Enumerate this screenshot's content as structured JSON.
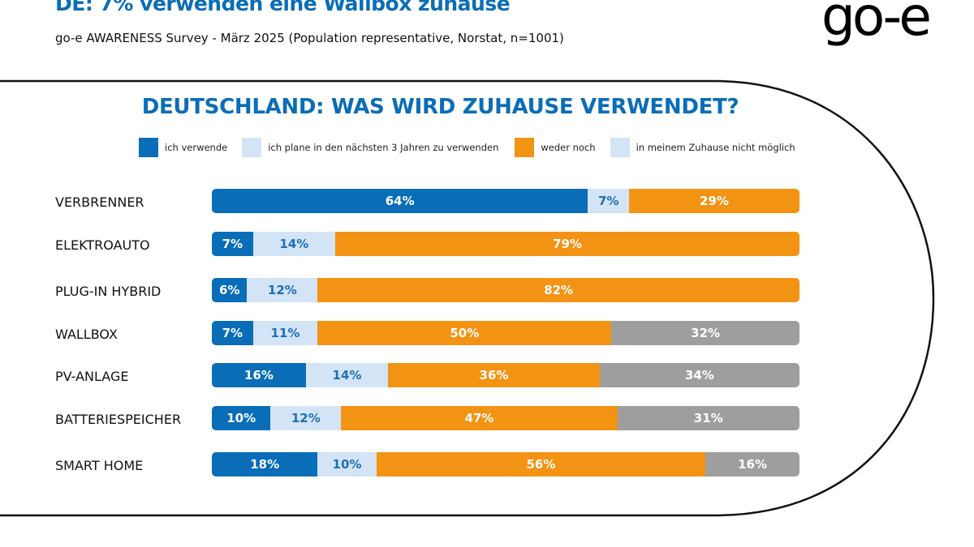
{
  "header": {
    "title": "DE: 7% verwenden eine Wallbox zuhause",
    "subtitle": "go-e AWARENESS Survey - März 2025 (Population representative, Norstat, n=1001)",
    "logo": "go-e"
  },
  "chart_data": {
    "type": "bar",
    "orientation": "horizontal",
    "stacked": true,
    "title": "DEUTSCHLAND: WAS WIRD ZUHAUSE VERWENDET?",
    "legend_placement": "top",
    "categories": [
      "VERBRENNER",
      "ELEKTROAUTO",
      "PLUG-IN HYBRID",
      "WALLBOX",
      "PV-ANLAGE",
      "BATTERIESPEICHER",
      "SMART HOME"
    ],
    "series": [
      {
        "name": "ich verwende",
        "color": "#0a6db7",
        "legend_color": "#0a6db7",
        "label_color": "#ffffff",
        "values": [
          64,
          7,
          6,
          7,
          16,
          10,
          18
        ]
      },
      {
        "name": "ich plane in den nächsten 3 Jahren zu verwenden",
        "color": "#d3e4f6",
        "legend_color": "#d3e4f6",
        "label_color": "#1f6fb5",
        "values": [
          7,
          14,
          12,
          11,
          14,
          12,
          10
        ]
      },
      {
        "name": "weder noch",
        "color": "#f39314",
        "legend_color": "#f39314",
        "label_color": "#ffffff",
        "values": [
          29,
          79,
          82,
          50,
          36,
          47,
          56
        ]
      },
      {
        "name": "in meinem Zuhause nicht möglich",
        "color": "#9e9e9e",
        "legend_color": "#d3e4f6",
        "label_color": "#ffffff",
        "values": [
          null,
          null,
          null,
          32,
          34,
          31,
          16
        ]
      }
    ],
    "unit": "%"
  }
}
